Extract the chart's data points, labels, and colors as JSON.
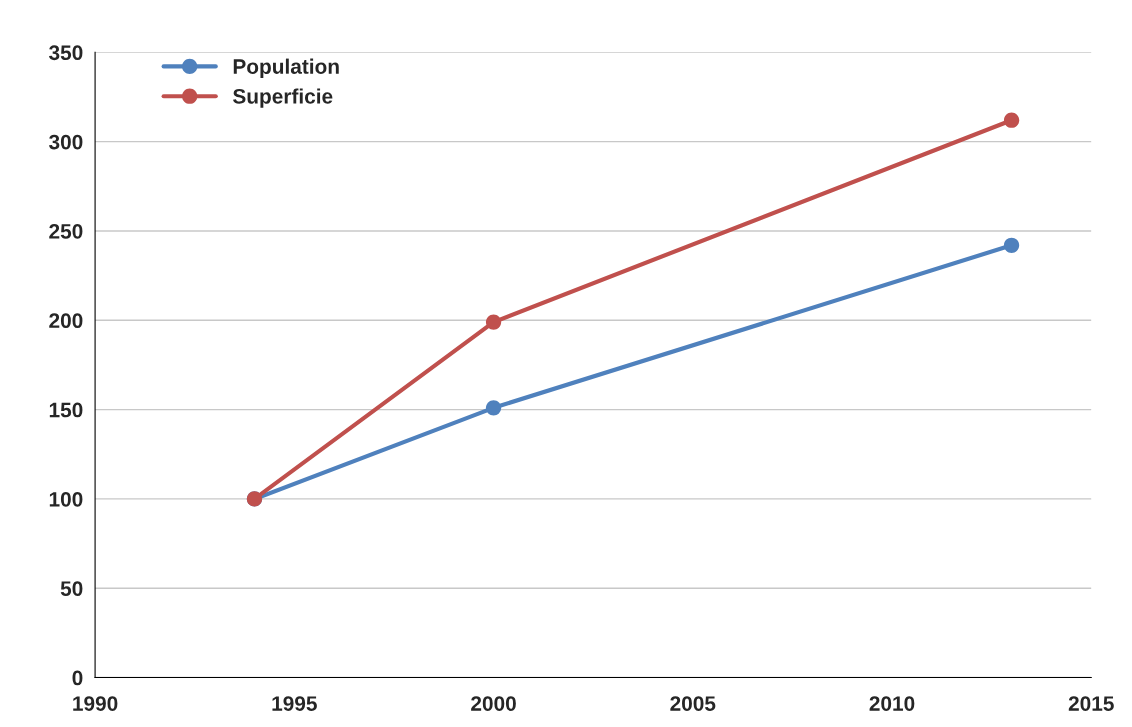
{
  "chart_data": {
    "type": "line",
    "x": [
      1994,
      2000,
      2013
    ],
    "series": [
      {
        "name": "Population",
        "color": "#4f81bd",
        "values": [
          100,
          151,
          242
        ]
      },
      {
        "name": "Superficie",
        "color": "#c0504d",
        "values": [
          100,
          199,
          312
        ]
      }
    ],
    "xlim": [
      1990,
      2015
    ],
    "xticks": [
      1990,
      1995,
      2000,
      2005,
      2010,
      2015
    ],
    "ylim": [
      0,
      350
    ],
    "yticks": [
      0,
      50,
      100,
      150,
      200,
      250,
      300,
      350
    ],
    "grid": "y",
    "legend": "top left",
    "marker": "circle",
    "line_style": "solid"
  }
}
